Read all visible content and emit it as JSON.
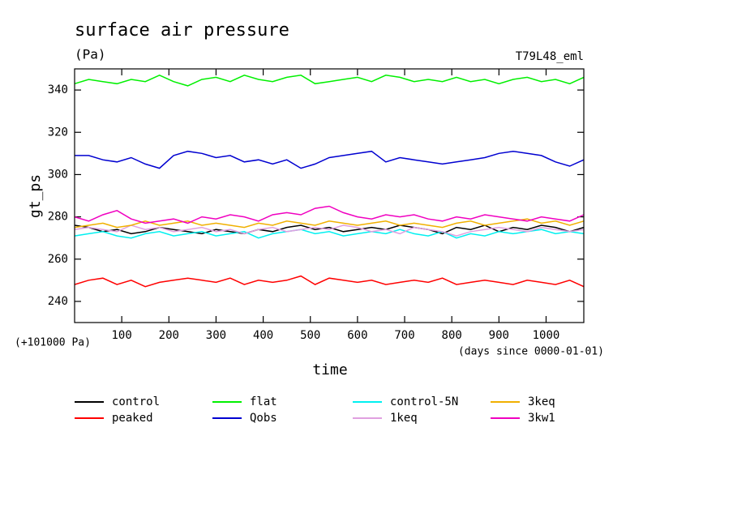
{
  "chart_data": {
    "type": "line",
    "title": "surface air pressure",
    "units": "(Pa)",
    "experiment": "T79L48_eml",
    "y_label": "gt_ps",
    "x_label": "time",
    "y_offset_note": "(+101000 Pa)",
    "x_unit_note": "(days since 0000-01-01)",
    "x": [
      0,
      30,
      60,
      90,
      120,
      150,
      180,
      210,
      240,
      270,
      300,
      330,
      360,
      390,
      420,
      450,
      480,
      510,
      540,
      570,
      600,
      630,
      660,
      690,
      720,
      750,
      780,
      810,
      840,
      870,
      900,
      930,
      960,
      990,
      1020,
      1050,
      1080
    ],
    "xlim": [
      0,
      1080
    ],
    "xticks": [
      100,
      200,
      300,
      400,
      500,
      600,
      700,
      800,
      900,
      1000
    ],
    "ylim": [
      230,
      350
    ],
    "yticks": [
      240,
      260,
      280,
      300,
      320,
      340
    ],
    "series": [
      {
        "name": "control",
        "color": "#000000",
        "values": [
          276,
          275,
          273,
          274,
          272,
          273,
          275,
          274,
          273,
          272,
          274,
          273,
          272,
          274,
          273,
          275,
          276,
          274,
          275,
          273,
          274,
          275,
          274,
          276,
          275,
          274,
          272,
          275,
          274,
          276,
          273,
          275,
          274,
          276,
          275,
          273,
          275
        ]
      },
      {
        "name": "peaked",
        "color": "#ff0000",
        "values": [
          248,
          250,
          251,
          248,
          250,
          247,
          249,
          250,
          251,
          250,
          249,
          251,
          248,
          250,
          249,
          250,
          252,
          248,
          251,
          250,
          249,
          250,
          248,
          249,
          250,
          249,
          251,
          248,
          249,
          250,
          249,
          248,
          250,
          249,
          248,
          250,
          247
        ]
      },
      {
        "name": "flat",
        "color": "#00f000",
        "values": [
          343,
          345,
          344,
          343,
          345,
          344,
          347,
          344,
          342,
          345,
          346,
          344,
          347,
          345,
          344,
          346,
          347,
          343,
          344,
          345,
          346,
          344,
          347,
          346,
          344,
          345,
          344,
          346,
          344,
          345,
          343,
          345,
          346,
          344,
          345,
          343,
          346
        ]
      },
      {
        "name": "Qobs",
        "color": "#0000d0",
        "values": [
          309,
          309,
          307,
          306,
          308,
          305,
          303,
          309,
          311,
          310,
          308,
          309,
          306,
          307,
          305,
          307,
          303,
          305,
          308,
          309,
          310,
          311,
          306,
          308,
          307,
          306,
          305,
          306,
          307,
          308,
          310,
          311,
          310,
          309,
          306,
          304,
          307
        ]
      },
      {
        "name": "control-5N",
        "color": "#00f0f0",
        "values": [
          271,
          272,
          273,
          271,
          270,
          272,
          273,
          271,
          272,
          273,
          271,
          272,
          273,
          270,
          272,
          273,
          274,
          272,
          273,
          271,
          272,
          273,
          272,
          274,
          272,
          271,
          273,
          270,
          272,
          271,
          273,
          272,
          273,
          274,
          272,
          273,
          272
        ]
      },
      {
        "name": "1keq",
        "color": "#e0a0e0",
        "values": [
          274,
          275,
          274,
          273,
          276,
          274,
          275,
          273,
          274,
          275,
          273,
          274,
          272,
          274,
          275,
          273,
          274,
          275,
          274,
          276,
          275,
          273,
          274,
          272,
          275,
          274,
          273,
          271,
          273,
          274,
          275,
          274,
          273,
          275,
          274,
          273,
          274
        ]
      },
      {
        "name": "3keq",
        "color": "#f0b000",
        "values": [
          275,
          276,
          277,
          275,
          276,
          278,
          276,
          277,
          278,
          276,
          277,
          276,
          275,
          277,
          276,
          278,
          277,
          276,
          278,
          277,
          276,
          277,
          278,
          276,
          277,
          276,
          275,
          277,
          278,
          276,
          277,
          278,
          279,
          277,
          278,
          276,
          278
        ]
      },
      {
        "name": "3kw1",
        "color": "#f000c0",
        "values": [
          280,
          278,
          281,
          283,
          279,
          277,
          278,
          279,
          277,
          280,
          279,
          281,
          280,
          278,
          281,
          282,
          281,
          284,
          285,
          282,
          280,
          279,
          281,
          280,
          281,
          279,
          278,
          280,
          279,
          281,
          280,
          279,
          278,
          280,
          279,
          278,
          281
        ]
      }
    ]
  }
}
